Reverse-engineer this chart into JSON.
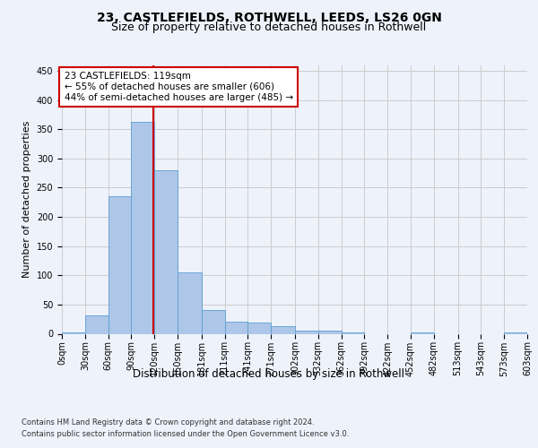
{
  "title_line1": "23, CASTLEFIELDS, ROTHWELL, LEEDS, LS26 0GN",
  "title_line2": "Size of property relative to detached houses in Rothwell",
  "xlabel": "Distribution of detached houses by size in Rothwell",
  "ylabel": "Number of detached properties",
  "bin_edges": [
    0,
    30,
    60,
    90,
    120,
    150,
    181,
    211,
    241,
    271,
    302,
    332,
    362,
    392,
    422,
    452,
    482,
    513,
    543,
    573,
    603
  ],
  "bar_heights": [
    3,
    31,
    235,
    363,
    280,
    105,
    41,
    20,
    19,
    13,
    6,
    5,
    3,
    0,
    0,
    2,
    0,
    0,
    0,
    2
  ],
  "bar_color": "#aec6e8",
  "bar_edge_color": "#5a9fd4",
  "property_size": 119,
  "red_line_color": "#cc0000",
  "annotation_text": "23 CASTLEFIELDS: 119sqm\n← 55% of detached houses are smaller (606)\n44% of semi-detached houses are larger (485) →",
  "annotation_box_color": "white",
  "annotation_box_edge": "#cc0000",
  "ylim": [
    0,
    460
  ],
  "footnote1": "Contains HM Land Registry data © Crown copyright and database right 2024.",
  "footnote2": "Contains public sector information licensed under the Open Government Licence v3.0.",
  "background_color": "#eef2fb",
  "plot_background": "#eef2fb",
  "grid_color": "#cccccc",
  "title_fontsize": 10,
  "subtitle_fontsize": 9,
  "tick_label_fontsize": 7,
  "ylabel_fontsize": 8,
  "xlabel_fontsize": 8.5,
  "annotation_fontsize": 7.5
}
